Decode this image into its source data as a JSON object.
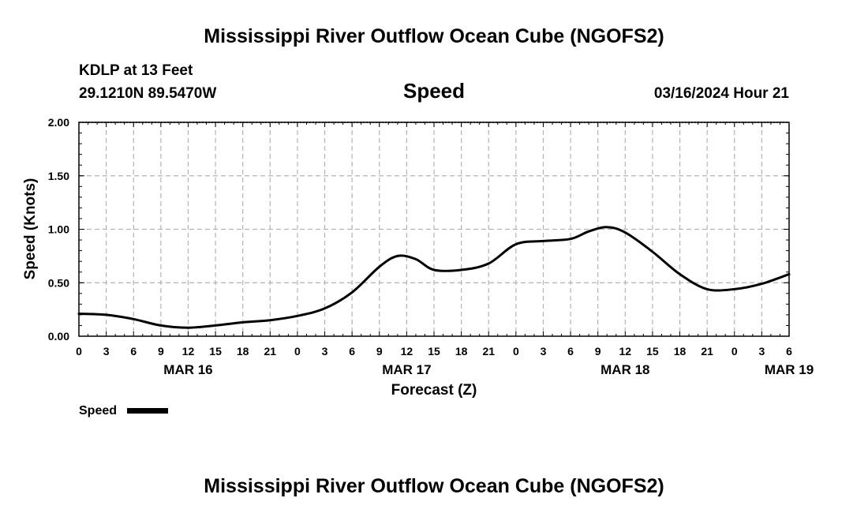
{
  "page": {
    "title_top": "Mississippi River Outflow Ocean Cube (NGOFS2)",
    "station_line": "KDLP at 13 Feet",
    "coords_line": "29.1210N  89.5470W",
    "variable_title": "Speed",
    "datetime_line": "03/16/2024 Hour 21",
    "title_bottom": "Mississippi River Outflow Ocean Cube (NGOFS2)"
  },
  "chart_data": {
    "type": "line",
    "title": "Speed",
    "xlabel": "Forecast (Z)",
    "ylabel": "Speed (Knots)",
    "ylim": [
      0,
      2
    ],
    "xlim_hours": [
      0,
      78
    ],
    "grid": true,
    "x_tick_labels": [
      "0",
      "3",
      "6",
      "9",
      "12",
      "15",
      "18",
      "21",
      "0",
      "3",
      "6",
      "9",
      "12",
      "15",
      "18",
      "21",
      "0",
      "3",
      "6",
      "9",
      "12",
      "15",
      "18",
      "21",
      "0",
      "3",
      "6"
    ],
    "x_date_labels": [
      {
        "label": "MAR 16",
        "hour": 12
      },
      {
        "label": "MAR 17",
        "hour": 36
      },
      {
        "label": "MAR 18",
        "hour": 60
      },
      {
        "label": "MAR 19",
        "hour": 78
      }
    ],
    "y_tick_labels": [
      "0.00",
      "0.50",
      "1.00",
      "1.50",
      "2.00"
    ],
    "y_ticks": [
      0,
      0.5,
      1.0,
      1.5,
      2.0
    ],
    "legend": {
      "label": "Speed",
      "position": "bottom-left"
    },
    "series": [
      {
        "name": "Speed",
        "color": "#000000",
        "x": [
          0,
          3,
          6,
          9,
          12,
          15,
          18,
          21,
          24,
          27,
          30,
          33,
          35,
          37,
          39,
          42,
          45,
          48,
          51,
          54,
          56,
          58,
          60,
          63,
          66,
          69,
          72,
          75,
          78
        ],
        "values": [
          0.21,
          0.2,
          0.16,
          0.1,
          0.08,
          0.1,
          0.13,
          0.15,
          0.19,
          0.26,
          0.41,
          0.65,
          0.75,
          0.72,
          0.62,
          0.62,
          0.68,
          0.86,
          0.89,
          0.91,
          0.98,
          1.02,
          0.97,
          0.79,
          0.58,
          0.44,
          0.44,
          0.49,
          0.58
        ]
      }
    ]
  }
}
